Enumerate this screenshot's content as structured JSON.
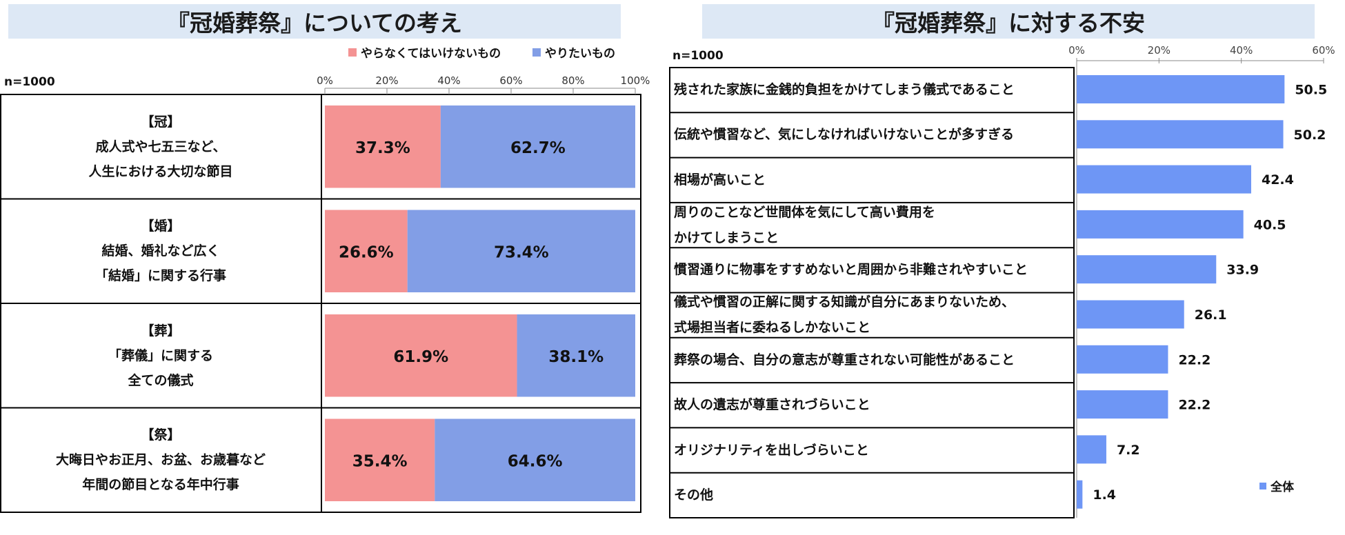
{
  "chart_data": [
    {
      "type": "bar",
      "orientation": "horizontal",
      "stacked": true,
      "percent_stacked": true,
      "title": "『冠婚葬祭』についての考え",
      "note": "n=1000",
      "legend": {
        "placement": "top-right"
      },
      "xlim": [
        0,
        100
      ],
      "ticks": [
        "0%",
        "20%",
        "40%",
        "60%",
        "80%",
        "100%"
      ],
      "categories": [
        {
          "lines": [
            "【冠】",
            "成人式や七五三など、",
            "人生における大切な節目"
          ]
        },
        {
          "lines": [
            "【婚】",
            "結婚、婚礼など広く",
            "「結婚」に関する行事"
          ]
        },
        {
          "lines": [
            "【葬】",
            "「葬儀」に関する",
            "全ての儀式"
          ]
        },
        {
          "lines": [
            "【祭】",
            "大晦日やお正月、お盆、お歳暮など",
            "年間の節目となる年中行事"
          ]
        }
      ],
      "series": [
        {
          "name": "やらなくてはいけないもの",
          "color": "#f49393",
          "values": [
            37.3,
            26.6,
            61.9,
            35.4
          ],
          "labels": [
            "37.3%",
            "26.6%",
            "61.9%",
            "35.4%"
          ]
        },
        {
          "name": "やりたいもの",
          "color": "#829ee6",
          "values": [
            62.7,
            73.4,
            38.1,
            64.6
          ],
          "labels": [
            "62.7%",
            "73.4%",
            "38.1%",
            "64.6%"
          ]
        }
      ]
    },
    {
      "type": "bar",
      "orientation": "horizontal",
      "title": "『冠婚葬祭』に対する不安",
      "note": "n=1000",
      "legend": {
        "placement": "bottom-right"
      },
      "xlim": [
        0,
        60
      ],
      "ticks": [
        "0%",
        "20%",
        "40%",
        "60%"
      ],
      "series": [
        {
          "name": "全体",
          "color": "#6e96f5"
        }
      ],
      "categories": [
        {
          "lines": [
            "残された家族に金銭的負担をかけてしまう儀式であること"
          ]
        },
        {
          "lines": [
            "伝統や慣習など、気にしなければいけないことが多すぎる"
          ]
        },
        {
          "lines": [
            "相場が高いこと"
          ]
        },
        {
          "lines": [
            "周りのことなど世間体を気にして高い費用を",
            "かけてしまうこと"
          ]
        },
        {
          "lines": [
            "慣習通りに物事をすすめないと周囲から非難されやすいこと"
          ]
        },
        {
          "lines": [
            "儀式や慣習の正解に関する知識が自分にあまりないため、",
            "式場担当者に委ねるしかないこと"
          ]
        },
        {
          "lines": [
            "葬祭の場合、自分の意志が尊重されない可能性があること"
          ]
        },
        {
          "lines": [
            "故人の遺志が尊重されづらいこと"
          ]
        },
        {
          "lines": [
            "オリジナリティを出しづらいこと"
          ]
        },
        {
          "lines": [
            "その他"
          ]
        }
      ],
      "values": [
        50.5,
        50.2,
        42.4,
        40.5,
        33.9,
        26.1,
        22.2,
        22.2,
        7.2,
        1.4
      ],
      "labels": [
        "50.5",
        "50.2",
        "42.4",
        "40.5",
        "33.9",
        "26.1",
        "22.2",
        "22.2",
        "7.2",
        "1.4"
      ]
    }
  ]
}
